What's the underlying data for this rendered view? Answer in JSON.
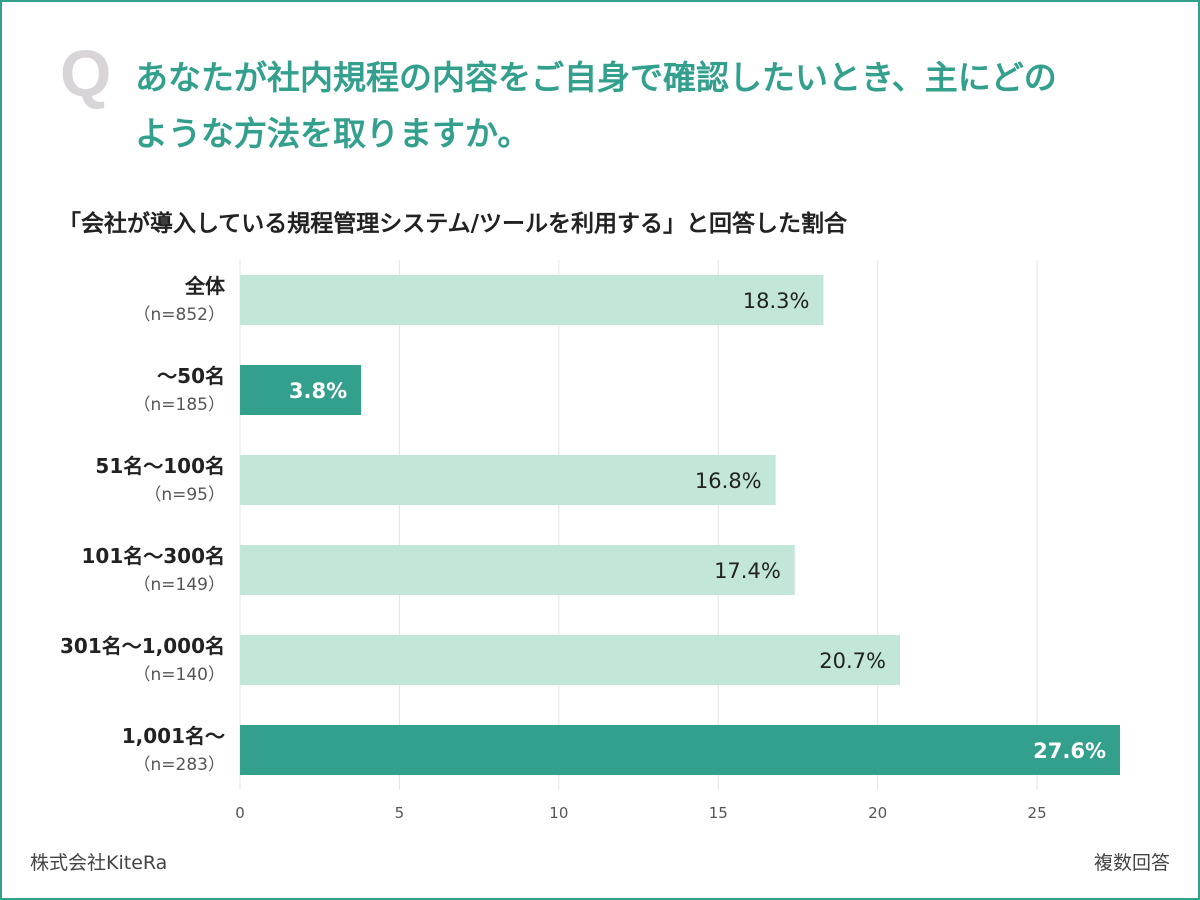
{
  "question": {
    "mark": "Q",
    "line1": "あなたが社内規程の内容をご自身で確認したいとき、主にどの",
    "line2": "ような方法を取りますか。"
  },
  "subtitle": "「会社が導入している規程管理システム/ツールを利用する」と回答した割合",
  "footer": {
    "company": "株式会社KiteRa",
    "note": "複数回答"
  },
  "colors": {
    "accent": "#33a08e",
    "light_bar": "#c2e6d8",
    "dark_bar": "#33a08e",
    "grid": "#e4e4e4",
    "question_mark": "#d9d4d7"
  },
  "chart_data": {
    "type": "bar",
    "orientation": "horizontal",
    "title": "「会社が導入している規程管理システム/ツールを利用する」と回答した割合",
    "categories": [
      "全体",
      "～50名",
      "51名～100名",
      "101名～300名",
      "301名～1,000名",
      "1,001名～"
    ],
    "sample_sizes": [
      "（n=852）",
      "（n=185）",
      "（n=95）",
      "（n=149）",
      "（n=140）",
      "（n=283）"
    ],
    "values": [
      18.3,
      3.8,
      16.8,
      17.4,
      20.7,
      27.6
    ],
    "value_labels": [
      "18.3%",
      "3.8%",
      "16.8%",
      "17.4%",
      "20.7%",
      "27.6%"
    ],
    "highlighted": [
      false,
      true,
      false,
      false,
      false,
      true
    ],
    "xlim": [
      0,
      27.6
    ],
    "xticks": [
      "0",
      "5",
      "10",
      "15",
      "20",
      "25"
    ],
    "tick_values": [
      0,
      5,
      10,
      15,
      20,
      25
    ],
    "grid": true,
    "xlabel": "",
    "ylabel": ""
  }
}
